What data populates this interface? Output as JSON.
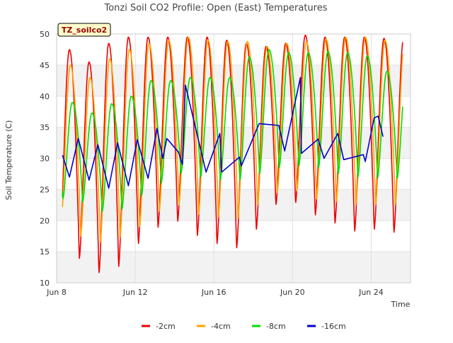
{
  "chart_data": {
    "type": "line",
    "title": "Tonzi Soil CO2 Profile: Open (East) Temperatures",
    "xlabel": "Time",
    "ylabel": "Soil Temperature (C)",
    "badge": "TZ_soilco2",
    "xlim": [
      0,
      18
    ],
    "ylim": [
      10,
      50
    ],
    "yticks": [
      10,
      15,
      20,
      25,
      30,
      35,
      40,
      45,
      50
    ],
    "xticks": [
      {
        "day": 0,
        "label": "Jun 8"
      },
      {
        "day": 4,
        "label": "Jun 12"
      },
      {
        "day": 8,
        "label": "Jun 16"
      },
      {
        "day": 12,
        "label": "Jun 20"
      },
      {
        "day": 16,
        "label": "Jun 24"
      }
    ],
    "legend_position": "bottom",
    "grid": true,
    "series": [
      {
        "name": "-2cm",
        "color": "#ee0000",
        "kind": "diurnal",
        "x0": 0.3,
        "x1": 17.6,
        "phase": 0.15,
        "peak": 0.65,
        "max": [
          47.5,
          45.5,
          48.5,
          49.5,
          49.5,
          49.5,
          49.5,
          49.5,
          49,
          48.5,
          48,
          48.5,
          49.8,
          49.5,
          49.5,
          49.5,
          49.3,
          49.3
        ],
        "min": [
          14.5,
          13.8,
          11.5,
          12.5,
          16.2,
          18.8,
          19.8,
          17.5,
          16.2,
          15.5,
          18.5,
          22.5,
          22.8,
          20.8,
          19.5,
          18.2,
          18.5,
          18.0
        ]
      },
      {
        "name": "-4cm",
        "color": "#ffa500",
        "kind": "diurnal",
        "x0": 0.3,
        "x1": 17.6,
        "phase": 0.22,
        "peak": 0.7,
        "max": [
          45,
          43,
          46,
          47.5,
          48.5,
          49,
          49.5,
          49,
          48.8,
          48.8,
          48,
          48.5,
          48.8,
          49.2,
          49.5,
          49.5,
          49,
          49
        ],
        "min": [
          19.2,
          17.5,
          16.5,
          17.2,
          19,
          21.5,
          22.5,
          21,
          20.5,
          20.3,
          22.5,
          24.5,
          24.8,
          23.5,
          23,
          22.5,
          22.5,
          22.5
        ]
      },
      {
        "name": "-8cm",
        "color": "#00dd00",
        "kind": "diurnal",
        "x0": 0.3,
        "x1": 17.6,
        "phase": 0.32,
        "peak": 0.8,
        "max": [
          39,
          37.3,
          38.8,
          40,
          42.5,
          42.5,
          43,
          43,
          43,
          46.3,
          47.5,
          47,
          47,
          47.2,
          47,
          46.5,
          44,
          43.5
        ],
        "min": [
          23.5,
          23,
          21.5,
          21.8,
          24,
          26,
          27.5,
          27,
          26.5,
          26.5,
          27.5,
          28.5,
          28.8,
          28.5,
          27.5,
          27,
          26.8,
          26.8
        ]
      },
      {
        "name": "-16cm",
        "color": "#0000cc",
        "kind": "points",
        "points": [
          [
            0.3,
            30.5
          ],
          [
            0.65,
            27
          ],
          [
            1.1,
            33.2
          ],
          [
            1.65,
            26.5
          ],
          [
            2.1,
            32.2
          ],
          [
            2.65,
            25.2
          ],
          [
            3.1,
            32.5
          ],
          [
            3.65,
            25.6
          ],
          [
            4.1,
            33
          ],
          [
            4.65,
            26.8
          ],
          [
            5.1,
            34.8
          ],
          [
            5.4,
            30
          ],
          [
            5.6,
            33.2
          ],
          [
            6.2,
            31
          ],
          [
            6.4,
            29
          ],
          [
            6.55,
            41.8
          ],
          [
            7.6,
            27.8
          ],
          [
            8.3,
            34
          ],
          [
            8.4,
            27.8
          ],
          [
            9.3,
            30.2
          ],
          [
            9.4,
            28.8
          ],
          [
            10.3,
            35.6
          ],
          [
            11.3,
            35.3
          ],
          [
            11.6,
            31.2
          ],
          [
            12.4,
            43
          ],
          [
            12.45,
            30.8
          ],
          [
            13.3,
            33.1
          ],
          [
            13.6,
            30
          ],
          [
            14.3,
            34
          ],
          [
            14.6,
            29.8
          ],
          [
            15.6,
            30.6
          ],
          [
            15.7,
            29.5
          ],
          [
            16.15,
            36.5
          ],
          [
            16.35,
            36.8
          ],
          [
            16.6,
            33.5
          ]
        ]
      }
    ]
  }
}
